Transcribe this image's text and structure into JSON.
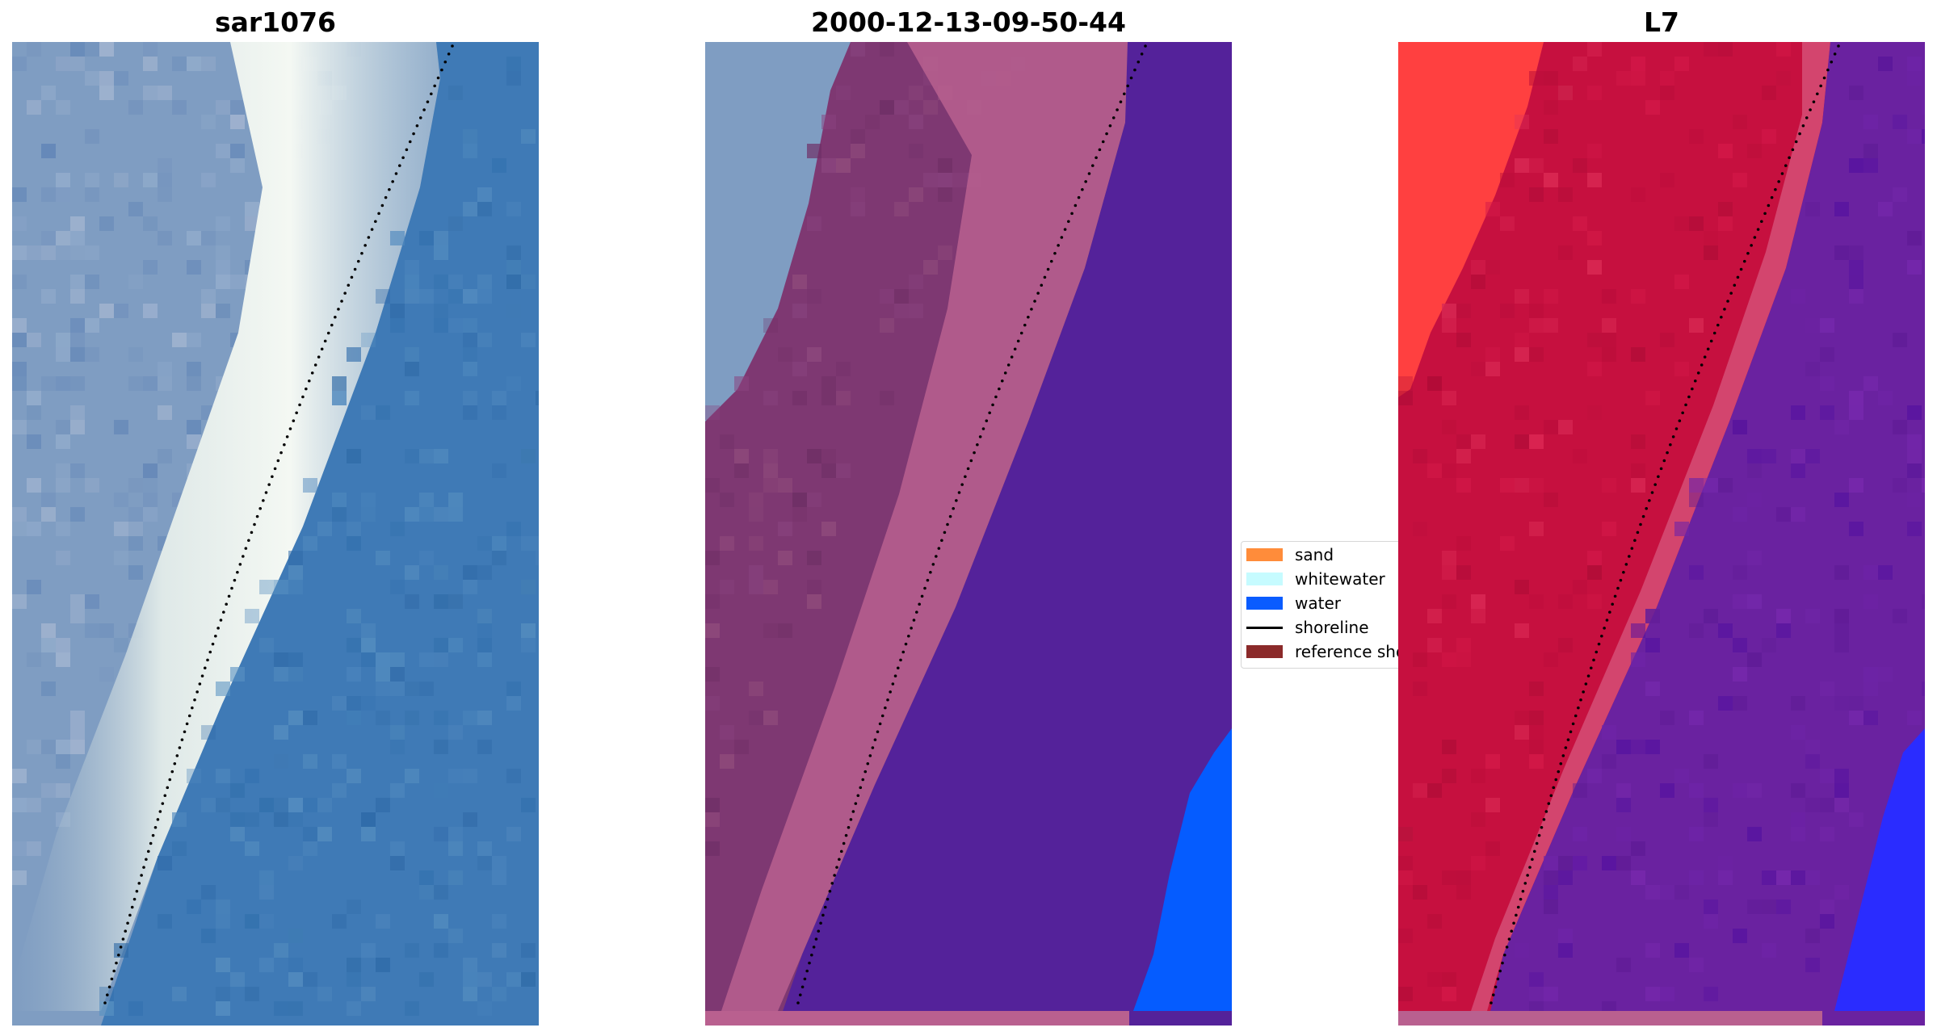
{
  "panels": [
    {
      "title": "sar1076"
    },
    {
      "title": "2000-12-13-09-50-44"
    },
    {
      "title": "L7"
    }
  ],
  "legend": {
    "items": [
      {
        "label": "sand",
        "color": "#ff8c3a",
        "kind": "patch"
      },
      {
        "label": "whitewater",
        "color": "#c6fbff",
        "kind": "patch"
      },
      {
        "label": "water",
        "color": "#0a5cff",
        "kind": "patch"
      },
      {
        "label": "shoreline",
        "color": "#000000",
        "kind": "line"
      },
      {
        "label": "reference shoreline",
        "color": "#8b2a2a",
        "kind": "patch"
      }
    ]
  },
  "colors": {
    "rgb_water": "#3f7ab6",
    "rgb_beach": "#7f9dc2",
    "rgb_surf": "#e8f1ee",
    "sand_overlay": "#7e3872",
    "sand_overlay_light": "#b9608f",
    "classified_water": "#54229a",
    "bright_water": "#055cff",
    "mndwi_land": "#c6103f",
    "mndwi_water": "#6a22a0",
    "mndwi_bright_land": "#ff4040",
    "mndwi_bright_water": "#2a2cff",
    "bottom_strip": "#b9608f",
    "shoreline_points": "#000000"
  }
}
